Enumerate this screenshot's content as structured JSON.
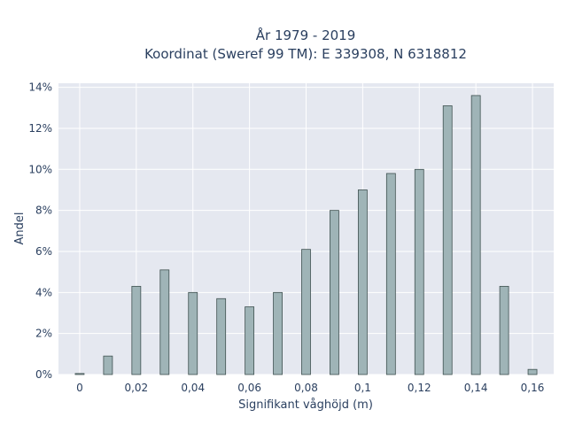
{
  "chart_data": {
    "type": "bar",
    "title": "År 1979 - 2019",
    "subtitle": "Koordinat (Sweref 99 TM): E 339308, N 6318812",
    "xlabel": "Signifikant våghöjd (m)",
    "ylabel": "Andel",
    "x": [
      0,
      0.01,
      0.02,
      0.03,
      0.04,
      0.05,
      0.06,
      0.07,
      0.08,
      0.09,
      0.1,
      0.11,
      0.12,
      0.13,
      0.14,
      0.15,
      0.16
    ],
    "values": [
      0.0005,
      0.009,
      0.043,
      0.051,
      0.04,
      0.037,
      0.033,
      0.04,
      0.061,
      0.08,
      0.09,
      0.098,
      0.1,
      0.131,
      0.136,
      0.043,
      0.0025
    ],
    "xlim": [
      -0.0075,
      0.1675
    ],
    "ylim": [
      0,
      0.142
    ],
    "x_ticks": [
      0,
      0.02,
      0.04,
      0.06,
      0.08,
      0.1,
      0.12,
      0.14,
      0.16
    ],
    "x_tick_labels": [
      "0",
      "0,02",
      "0,04",
      "0,06",
      "0,08",
      "0,1",
      "0,12",
      "0,14",
      "0,16"
    ],
    "y_ticks": [
      0,
      0.02,
      0.04,
      0.06,
      0.08,
      0.1,
      0.12,
      0.14
    ],
    "y_tick_labels": [
      "0%",
      "2%",
      "4%",
      "6%",
      "8%",
      "10%",
      "12%",
      "14%"
    ],
    "grid": true,
    "colors": {
      "plot_background": "#e5e8f0",
      "bar_fill": "#9fb4b7",
      "bar_stroke": "#3f5150"
    }
  }
}
